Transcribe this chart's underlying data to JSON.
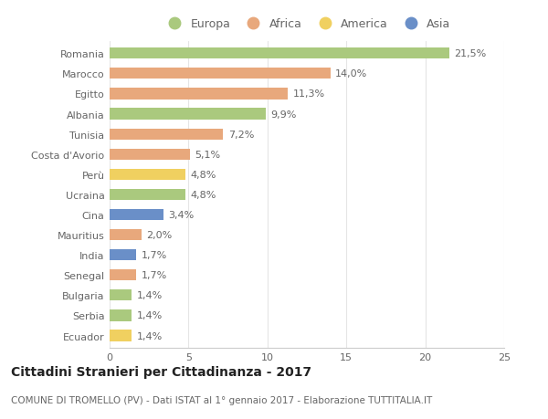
{
  "countries": [
    "Romania",
    "Marocco",
    "Egitto",
    "Albania",
    "Tunisia",
    "Costa d'Avorio",
    "Perù",
    "Ucraina",
    "Cina",
    "Mauritius",
    "India",
    "Senegal",
    "Bulgaria",
    "Serbia",
    "Ecuador"
  ],
  "values": [
    21.5,
    14.0,
    11.3,
    9.9,
    7.2,
    5.1,
    4.8,
    4.8,
    3.4,
    2.0,
    1.7,
    1.7,
    1.4,
    1.4,
    1.4
  ],
  "labels": [
    "21,5%",
    "14,0%",
    "11,3%",
    "9,9%",
    "7,2%",
    "5,1%",
    "4,8%",
    "4,8%",
    "3,4%",
    "2,0%",
    "1,7%",
    "1,7%",
    "1,4%",
    "1,4%",
    "1,4%"
  ],
  "continents": [
    "Europa",
    "Africa",
    "Africa",
    "Europa",
    "Africa",
    "Africa",
    "America",
    "Europa",
    "Asia",
    "Africa",
    "Asia",
    "Africa",
    "Europa",
    "Europa",
    "America"
  ],
  "colors": {
    "Europa": "#aac97e",
    "Africa": "#e8a87c",
    "America": "#f0d060",
    "Asia": "#6a8fc8"
  },
  "legend_order": [
    "Europa",
    "Africa",
    "America",
    "Asia"
  ],
  "xlim": [
    0,
    25
  ],
  "xticks": [
    0,
    5,
    10,
    15,
    20,
    25
  ],
  "title": "Cittadini Stranieri per Cittadinanza - 2017",
  "subtitle": "COMUNE DI TROMELLO (PV) - Dati ISTAT al 1° gennaio 2017 - Elaborazione TUTTITALIA.IT",
  "background_color": "#ffffff",
  "bar_height": 0.55,
  "label_fontsize": 8,
  "tick_fontsize": 8,
  "title_fontsize": 10,
  "subtitle_fontsize": 7.5,
  "legend_fontsize": 9
}
